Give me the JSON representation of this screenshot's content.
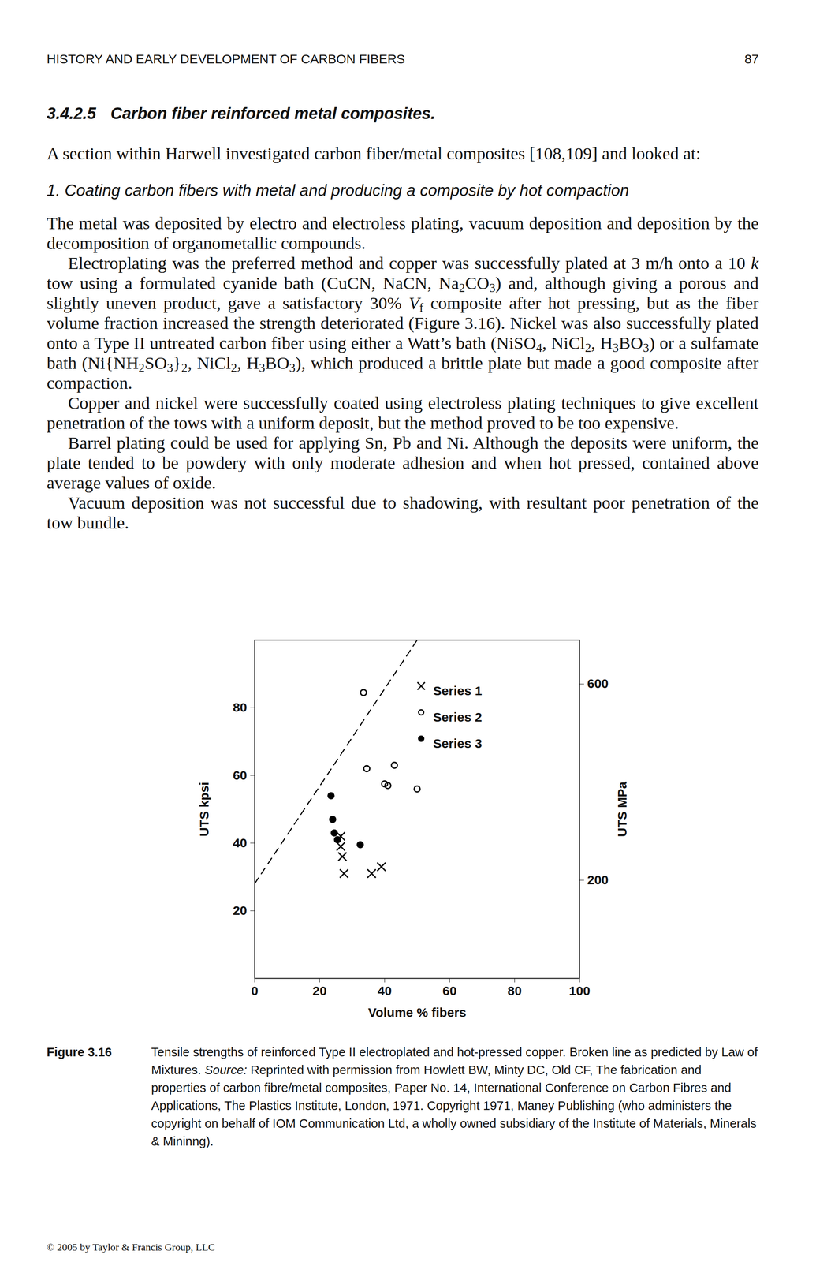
{
  "header": {
    "title": "HISTORY AND EARLY DEVELOPMENT OF CARBON FIBERS",
    "page": "87"
  },
  "heading": {
    "number": "3.4.2.5",
    "title": "Carbon fiber reinforced metal composites."
  },
  "body": [
    {
      "kind": "paragraph",
      "runs": [
        "A section within Harwell investigated carbon fiber/metal composites [108,109] and looked at:"
      ]
    },
    {
      "kind": "subheading",
      "runs": [
        "1. Coating carbon fibers with metal and producing a composite by hot compaction"
      ]
    },
    {
      "kind": "paragraph",
      "runs": [
        "The metal was deposited by electro and electroless plating, vacuum deposition and deposition by the decomposition of organometallic compounds."
      ]
    },
    {
      "kind": "paragraph",
      "runs": [
        "Electroplating was the preferred method and copper was successfully plated at 3 m/h onto a 10 ",
        {
          "em": "k"
        },
        " tow using a formulated cyanide bath (CuCN, NaCN, Na",
        {
          "sub": "2"
        },
        "CO",
        {
          "sub": "3"
        },
        ") and, although giving a porous and slightly uneven product, gave a satisfactory 30% ",
        {
          "em": "V"
        },
        {
          "sub": "f"
        },
        " composite after hot pressing, but as the fiber volume fraction increased the strength deteriorated (Figure 3.16). Nickel was also successfully plated onto a Type II untreated carbon fiber using either a Watt’s bath (NiSO",
        {
          "sub": "4"
        },
        ", NiCl",
        {
          "sub": "2"
        },
        ", H",
        {
          "sub": "3"
        },
        "BO",
        {
          "sub": "3"
        },
        ") or a sulfamate bath (Ni{NH",
        {
          "sub": "2"
        },
        "SO",
        {
          "sub": "3"
        },
        "}",
        {
          "sub": "2"
        },
        ", NiCl",
        {
          "sub": "2"
        },
        ", H",
        {
          "sub": "3"
        },
        "BO",
        {
          "sub": "3"
        },
        "), which produced a brittle plate but made a good composite after compaction."
      ]
    },
    {
      "kind": "paragraph",
      "runs": [
        "Copper and nickel were successfully coated using electroless plating techniques to give excellent penetration of the tows with a uniform deposit, but the method proved to be too expensive."
      ]
    },
    {
      "kind": "paragraph",
      "runs": [
        "Barrel plating could be used for applying Sn, Pb and Ni. Although the deposits were uniform, the plate tended to be powdery with only moderate adhesion and when hot pressed, contained above average values of oxide."
      ]
    },
    {
      "kind": "paragraph",
      "runs": [
        "Vacuum deposition was not successful due to shadowing, with resultant poor penetration of the tow bundle."
      ]
    }
  ],
  "chart_data": {
    "type": "scatter",
    "xlabel": "Volume % fibers",
    "ylabel": "UTS kpsi",
    "y2label": "UTS MPa",
    "xlim": [
      0,
      100
    ],
    "xticks": [
      0,
      20,
      40,
      60,
      80,
      100
    ],
    "ylim": [
      0,
      100
    ],
    "yticks": [
      20,
      40,
      60,
      80
    ],
    "y2lim": [
      0,
      689.5
    ],
    "y2ticks": [
      200,
      600
    ],
    "legend": "top-right",
    "series": [
      {
        "name": "Series 1",
        "color": "#000000",
        "marker": "x",
        "x": [
          26.5,
          26.5,
          27,
          27.5,
          36,
          39
        ],
        "values": [
          42,
          39,
          36,
          31,
          31,
          33
        ]
      },
      {
        "name": "Series 2",
        "color": "#000000",
        "marker": "circle-open",
        "x": [
          33.5,
          34.5,
          43,
          40,
          41,
          50
        ],
        "values": [
          84.5,
          62,
          63,
          57.5,
          57,
          56
        ]
      },
      {
        "name": "Series 3",
        "color": "#000000",
        "marker": "circle",
        "x": [
          23.5,
          24,
          24.5,
          25.5,
          32.5
        ],
        "values": [
          54,
          47,
          43,
          41,
          39.5
        ]
      }
    ],
    "reference_line": {
      "color": "#000000",
      "line_style": "dashed",
      "x": [
        0,
        50
      ],
      "values": [
        28,
        100
      ]
    }
  },
  "caption": {
    "label": "Figure 3.16",
    "runs": [
      "Tensile strengths of reinforced Type II electroplated and hot-pressed copper. Broken line as predicted by Law of Mixtures. ",
      {
        "em": "Source:"
      },
      " Reprinted with permission from Howlett BW, Minty DC, Old CF, The fabrication and properties of carbon fibre/metal composites, Paper No. 14, International Conference on Carbon Fibres and Applications, The Plastics Institute, London, 1971. Copyright 1971, Maney Publishing (who administers the copyright on behalf of IOM Communication Ltd, a wholly owned subsidiary of the Institute of Materials, Minerals & Mininng)."
    ]
  },
  "footer": "© 2005 by Taylor & Francis Group, LLC"
}
